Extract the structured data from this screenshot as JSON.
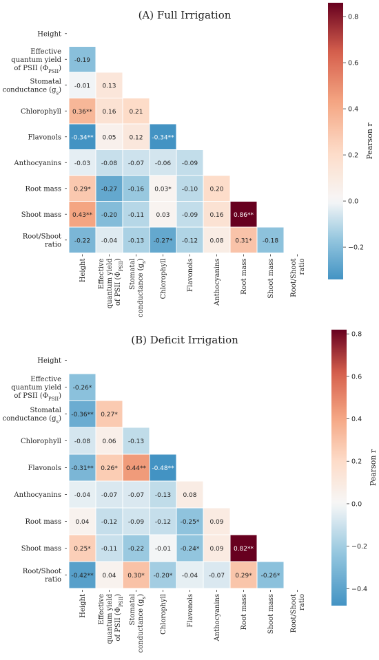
{
  "chart_data": [
    {
      "type": "heatmap",
      "title": "(A) Full Irrigation",
      "labels": [
        "Height",
        "Effective quantum yield of PSII (Φ_PSII)",
        "Stomatal conductance (g_s)",
        "Chlorophyll",
        "Flavonols",
        "Anthocyanins",
        "Root mass",
        "Shoot mass",
        "Root/Shoot ratio"
      ],
      "cells": [
        [
          "-0.19"
        ],
        [
          "-0.01",
          "0.13"
        ],
        [
          "0.36**",
          "0.16",
          "0.21"
        ],
        [
          "-0.34**",
          "0.05",
          "0.12",
          "-0.34**"
        ],
        [
          "-0.03",
          "-0.08",
          "-0.07",
          "-0.06",
          "-0.09"
        ],
        [
          "0.29*",
          "-0.27",
          "-0.16",
          "0.03*",
          "-0.10",
          "0.20"
        ],
        [
          "0.43**",
          "-0.20",
          "-0.11",
          "0.03",
          "-0.09",
          "0.16",
          "0.86**"
        ],
        [
          "-0.22",
          "-0.04",
          "-0.13",
          "-0.27*",
          "-0.12",
          "0.08",
          "0.31*",
          "-0.18"
        ]
      ],
      "colorbar": {
        "label": "Pearson r",
        "ticks": [
          -0.2,
          0,
          0.2,
          0.4,
          0.6,
          0.8
        ],
        "tick_labels": [
          "−0.2",
          "0.0",
          "0.2",
          "0.4",
          "0.6",
          "0.8"
        ],
        "range": [
          -0.34,
          0.86
        ]
      }
    },
    {
      "type": "heatmap",
      "title": "(B) Deficit Irrigation",
      "labels": [
        "Height",
        "Effective quantum yield of PSII (Φ_PSII)",
        "Stomatal conductance (g_s)",
        "Chlorophyll",
        "Flavonols",
        "Anthocyanins",
        "Root mass",
        "Shoot mass",
        "Root/Shoot ratio"
      ],
      "cells": [
        [
          "-0.26*"
        ],
        [
          "-0.36**",
          "0.27*"
        ],
        [
          "-0.08",
          "0.06",
          "-0.13"
        ],
        [
          "-0.31**",
          "0.26*",
          "0.44**",
          "-0.48**"
        ],
        [
          "-0.04",
          "-0.07",
          "-0.07",
          "-0.13",
          "0.08"
        ],
        [
          "0.04",
          "-0.12",
          "-0.09",
          "-0.12",
          "-0.25*",
          "0.09"
        ],
        [
          "0.25*",
          "-0.11",
          "-0.22",
          "-0.01",
          "-0.24*",
          "0.09",
          "0.82**"
        ],
        [
          "-0.42**",
          "0.04",
          "0.30*",
          "-0.20*",
          "-0.04",
          "-0.07",
          "0.29*",
          "-0.26*"
        ]
      ],
      "colorbar": {
        "label": "Pearson r",
        "ticks": [
          -0.4,
          -0.2,
          0,
          0.2,
          0.4,
          0.6,
          0.8
        ],
        "tick_labels": [
          "−0.4",
          "−0.2",
          "0.0",
          "0.2",
          "0.4",
          "0.6",
          "0.8"
        ],
        "range": [
          -0.48,
          0.82
        ]
      }
    }
  ]
}
